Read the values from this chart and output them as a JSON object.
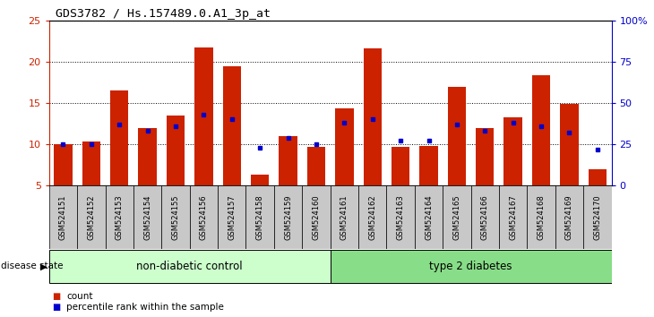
{
  "title": "GDS3782 / Hs.157489.0.A1_3p_at",
  "samples": [
    "GSM524151",
    "GSM524152",
    "GSM524153",
    "GSM524154",
    "GSM524155",
    "GSM524156",
    "GSM524157",
    "GSM524158",
    "GSM524159",
    "GSM524160",
    "GSM524161",
    "GSM524162",
    "GSM524163",
    "GSM524164",
    "GSM524165",
    "GSM524166",
    "GSM524167",
    "GSM524168",
    "GSM524169",
    "GSM524170"
  ],
  "counts": [
    10.0,
    10.3,
    16.5,
    12.0,
    13.5,
    21.7,
    19.5,
    6.3,
    11.0,
    9.7,
    14.4,
    21.6,
    9.7,
    9.8,
    17.0,
    12.0,
    13.3,
    18.4,
    14.9,
    7.0
  ],
  "percentiles": [
    25.0,
    25.0,
    37.0,
    33.0,
    36.0,
    43.0,
    40.0,
    23.0,
    29.0,
    25.0,
    38.0,
    40.0,
    27.0,
    27.0,
    37.0,
    33.0,
    38.0,
    36.0,
    32.0,
    22.0
  ],
  "non_diabetic_count": 10,
  "ylim_left": [
    5,
    25
  ],
  "ylim_right": [
    0,
    100
  ],
  "yticks_left": [
    5,
    10,
    15,
    20,
    25
  ],
  "yticks_right": [
    0,
    25,
    50,
    75,
    100
  ],
  "bar_color": "#CC2200",
  "dot_color": "#0000CC",
  "non_diabetic_bg": "#CCFFCC",
  "diabetic_bg": "#88DD88",
  "label_bg": "#C8C8C8",
  "legend_count_label": "count",
  "legend_pct_label": "percentile rank within the sample",
  "disease_state_label": "disease state",
  "non_diabetic_label": "non-diabetic control",
  "diabetic_label": "type 2 diabetes"
}
